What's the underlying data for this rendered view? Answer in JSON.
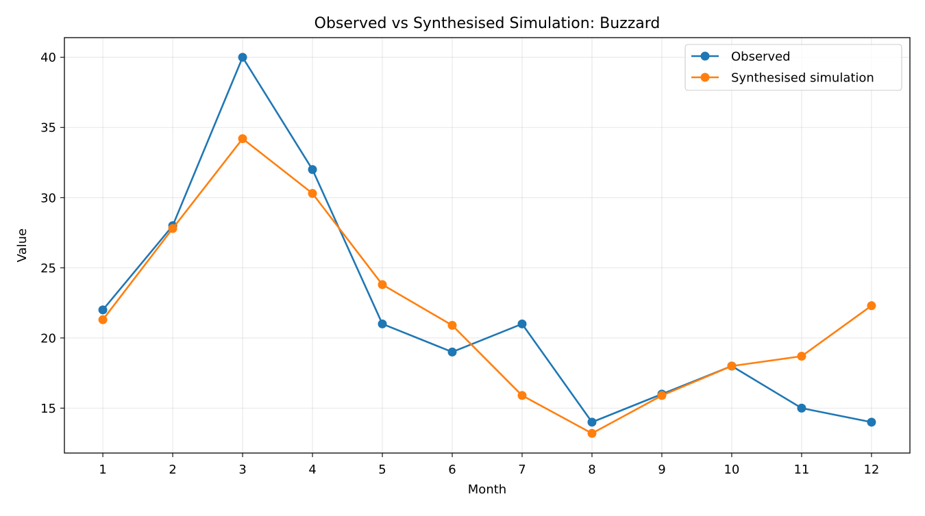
{
  "chart_data": {
    "type": "line",
    "title": "Observed vs Synthesised Simulation: Buzzard",
    "xlabel": "Month",
    "ylabel": "Value",
    "x": [
      1,
      2,
      3,
      4,
      5,
      6,
      7,
      8,
      9,
      10,
      11,
      12
    ],
    "xlim": [
      0.45,
      12.55
    ],
    "ylim": [
      11.8,
      41.4
    ],
    "yticks": [
      15,
      20,
      25,
      30,
      35,
      40
    ],
    "grid": true,
    "legend_position": "top-right",
    "series": [
      {
        "name": "Observed",
        "color": "#1f77b4",
        "values": [
          22,
          28,
          40,
          32,
          21,
          19,
          21,
          14,
          16,
          18,
          15,
          14
        ]
      },
      {
        "name": "Synthesised simulation",
        "color": "#ff7f0e",
        "values": [
          21.3,
          27.8,
          34.2,
          30.3,
          23.8,
          20.9,
          15.9,
          13.2,
          15.9,
          18.0,
          18.7,
          22.3
        ]
      }
    ]
  }
}
